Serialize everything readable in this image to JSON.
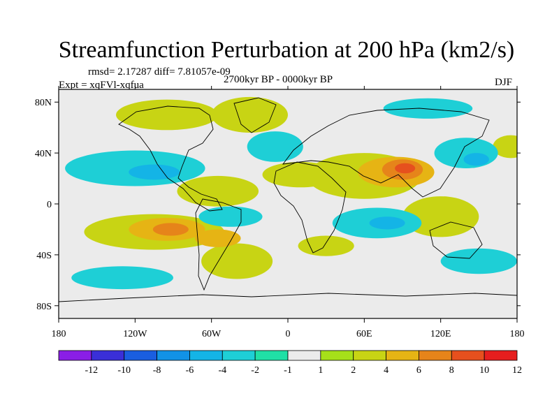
{
  "chart_data": {
    "type": "heatmap",
    "title": "Streamfunction Perturbation at 200 hPa (km2/s)",
    "stats_line": "rmsd= 2.17287 diff= 7.81057e-09",
    "experiment_label": "Expt = xqFVl-xqfua",
    "period_label": "2700kyr BP - 0000kyr BP",
    "season_label": "DJF",
    "xlim": [
      -180,
      180
    ],
    "ylim": [
      -90,
      90
    ],
    "x_ticks": [
      {
        "value": -180,
        "label": "180"
      },
      {
        "value": -120,
        "label": "120W"
      },
      {
        "value": -60,
        "label": "60W"
      },
      {
        "value": 0,
        "label": "0"
      },
      {
        "value": 60,
        "label": "60E"
      },
      {
        "value": 120,
        "label": "120E"
      },
      {
        "value": 180,
        "label": "180"
      }
    ],
    "y_ticks": [
      {
        "value": 80,
        "label": "80N"
      },
      {
        "value": 40,
        "label": "40N"
      },
      {
        "value": 0,
        "label": "0"
      },
      {
        "value": -40,
        "label": "40S"
      },
      {
        "value": -80,
        "label": "80S"
      }
    ],
    "colorbar": {
      "labels": [
        "-12",
        "-10",
        "-8",
        "-6",
        "-4",
        "-2",
        "-1",
        "1",
        "2",
        "4",
        "6",
        "8",
        "10",
        "12"
      ],
      "colors": [
        "#8a1ee6",
        "#3a2fd8",
        "#1a5ee0",
        "#1292e6",
        "#14b4e6",
        "#1ecfd6",
        "#20e0a6",
        "#ebebeb",
        "#a6e01a",
        "#c8d414",
        "#e6b414",
        "#e6841a",
        "#e6501e",
        "#e61e1e"
      ]
    },
    "field_contours": [
      {
        "level": 2,
        "lon": -105,
        "lat": -22,
        "rlon": 55,
        "rlat": 14
      },
      {
        "level": 4,
        "lon": -95,
        "lat": -20,
        "rlon": 30,
        "rlat": 9
      },
      {
        "level": 6,
        "lon": -92,
        "lat": -20,
        "rlon": 14,
        "rlat": 5
      },
      {
        "level": 4,
        "lon": -55,
        "lat": -27,
        "rlon": 18,
        "rlat": 7
      },
      {
        "level": 2,
        "lon": -55,
        "lat": 10,
        "rlon": 32,
        "rlat": 12
      },
      {
        "level": 2,
        "lon": -40,
        "lat": -45,
        "rlon": 28,
        "rlat": 14
      },
      {
        "level": 2,
        "lon": 10,
        "lat": 23,
        "rlon": 30,
        "rlat": 10
      },
      {
        "level": 2,
        "lon": -95,
        "lat": 70,
        "rlon": 40,
        "rlat": 12
      },
      {
        "level": 2,
        "lon": -30,
        "lat": 70,
        "rlon": 30,
        "rlat": 14
      },
      {
        "level": 2,
        "lon": 60,
        "lat": 22,
        "rlon": 45,
        "rlat": 18
      },
      {
        "level": 4,
        "lon": 85,
        "lat": 25,
        "rlon": 30,
        "rlat": 12
      },
      {
        "level": 6,
        "lon": 90,
        "lat": 27,
        "rlon": 16,
        "rlat": 8
      },
      {
        "level": 8,
        "lon": 92,
        "lat": 28,
        "rlon": 8,
        "rlat": 4
      },
      {
        "level": 2,
        "lon": 30,
        "lat": -33,
        "rlon": 22,
        "rlat": 8
      },
      {
        "level": 2,
        "lon": 120,
        "lat": -10,
        "rlon": 30,
        "rlat": 16
      },
      {
        "level": 2,
        "lon": 175,
        "lat": 45,
        "rlon": 14,
        "rlat": 9
      },
      {
        "level": -2,
        "lon": -120,
        "lat": 28,
        "rlon": 55,
        "rlat": 14
      },
      {
        "level": -4,
        "lon": -105,
        "lat": 25,
        "rlon": 20,
        "rlat": 6
      },
      {
        "level": -2,
        "lon": 70,
        "lat": -15,
        "rlon": 35,
        "rlat": 12
      },
      {
        "level": -4,
        "lon": 78,
        "lat": -15,
        "rlon": 14,
        "rlat": 5
      },
      {
        "level": -2,
        "lon": 140,
        "lat": 40,
        "rlon": 25,
        "rlat": 12
      },
      {
        "level": -4,
        "lon": 148,
        "lat": 35,
        "rlon": 10,
        "rlat": 5
      },
      {
        "level": -2,
        "lon": -10,
        "lat": 45,
        "rlon": 22,
        "rlat": 12
      },
      {
        "level": -2,
        "lon": -130,
        "lat": -58,
        "rlon": 40,
        "rlat": 9
      },
      {
        "level": -2,
        "lon": 150,
        "lat": -45,
        "rlon": 30,
        "rlat": 10
      },
      {
        "level": -2,
        "lon": 110,
        "lat": 75,
        "rlon": 35,
        "rlat": 8
      },
      {
        "level": -2,
        "lon": -45,
        "lat": -10,
        "rlon": 25,
        "rlat": 8
      }
    ]
  }
}
